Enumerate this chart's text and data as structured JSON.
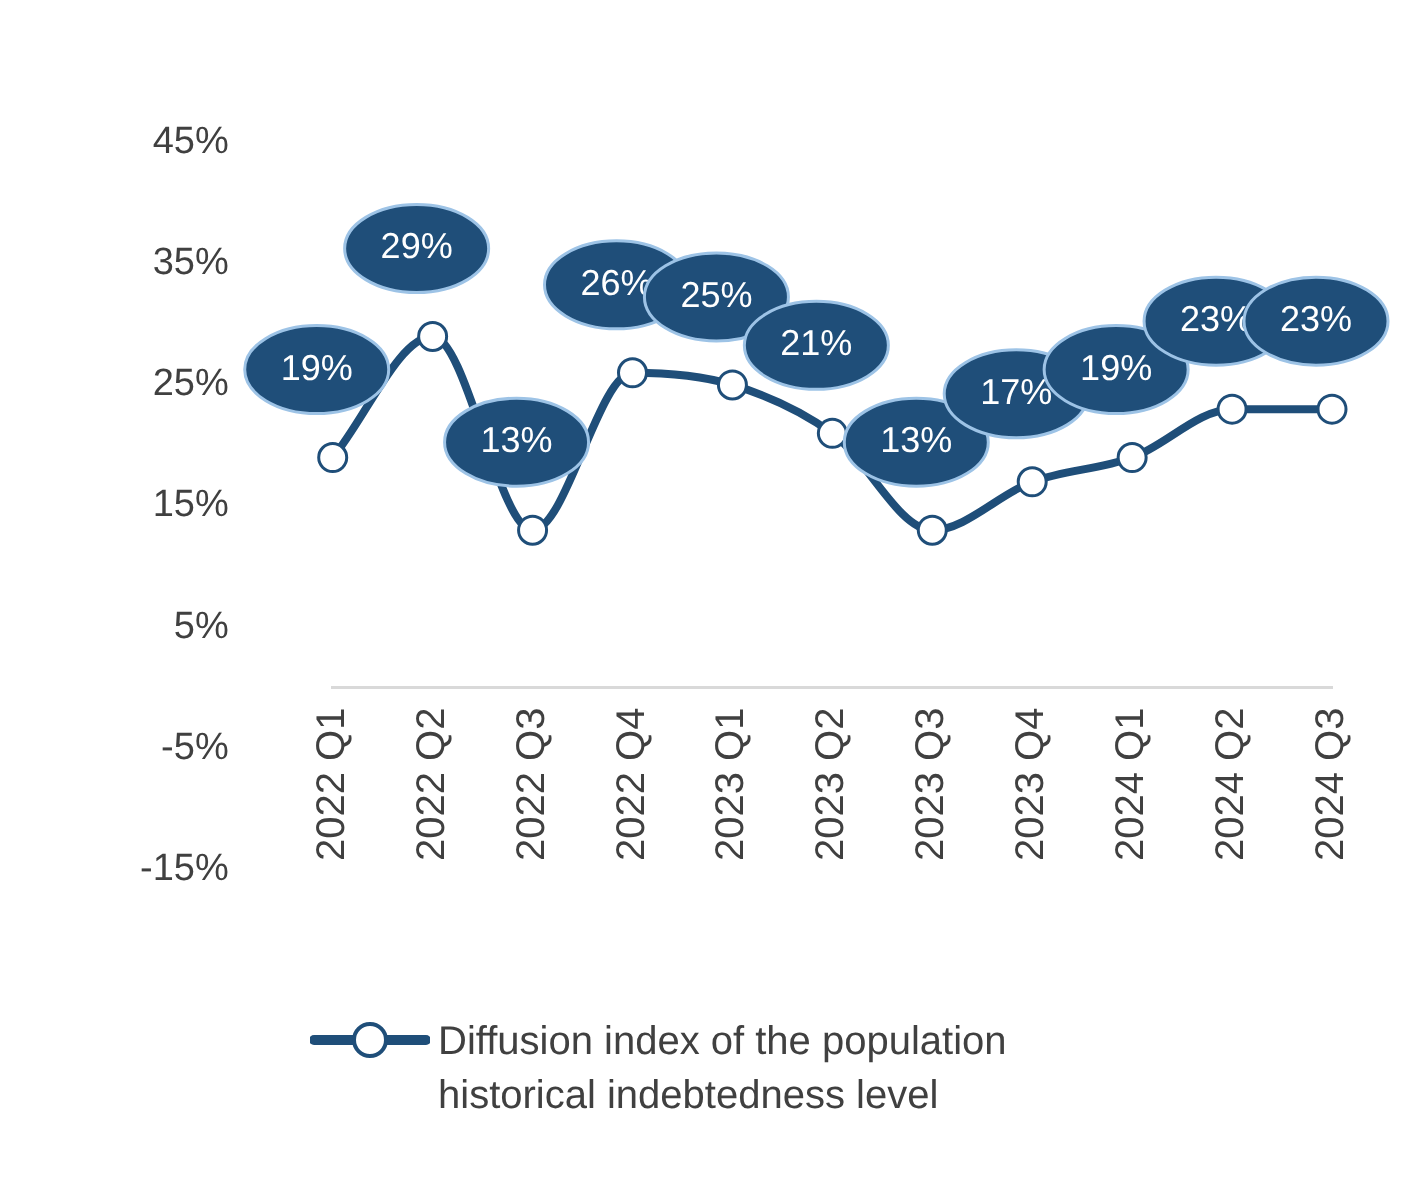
{
  "chart_data": {
    "type": "line",
    "categories": [
      "2022 Q1",
      "2022 Q2",
      "2022 Q3",
      "2022 Q4",
      "2023 Q1",
      "2023 Q2",
      "2023 Q3",
      "2023 Q4",
      "2024 Q1",
      "2024 Q2",
      "2024 Q3"
    ],
    "series": [
      {
        "name": "Diffusion index of the population historical indebtedness level",
        "color": "#1f4e79",
        "values": [
          19,
          29,
          13,
          26,
          25,
          21,
          13,
          17,
          19,
          23,
          23
        ],
        "value_labels": [
          "19%",
          "29%",
          "13%",
          "26%",
          "25%",
          "21%",
          "13%",
          "17%",
          "19%",
          "23%",
          "23%"
        ]
      }
    ],
    "ylim": [
      -15,
      45
    ],
    "yticks": [
      {
        "value": -15,
        "label": "-15%"
      },
      {
        "value": -5,
        "label": "-5%"
      },
      {
        "value": 5,
        "label": "5%"
      },
      {
        "value": 15,
        "label": "15%"
      },
      {
        "value": 25,
        "label": "25%"
      },
      {
        "value": 35,
        "label": "35%"
      },
      {
        "value": 45,
        "label": "45%"
      }
    ],
    "grid": false,
    "legend": "bottom",
    "marker": "circle",
    "line_style": "solid"
  }
}
